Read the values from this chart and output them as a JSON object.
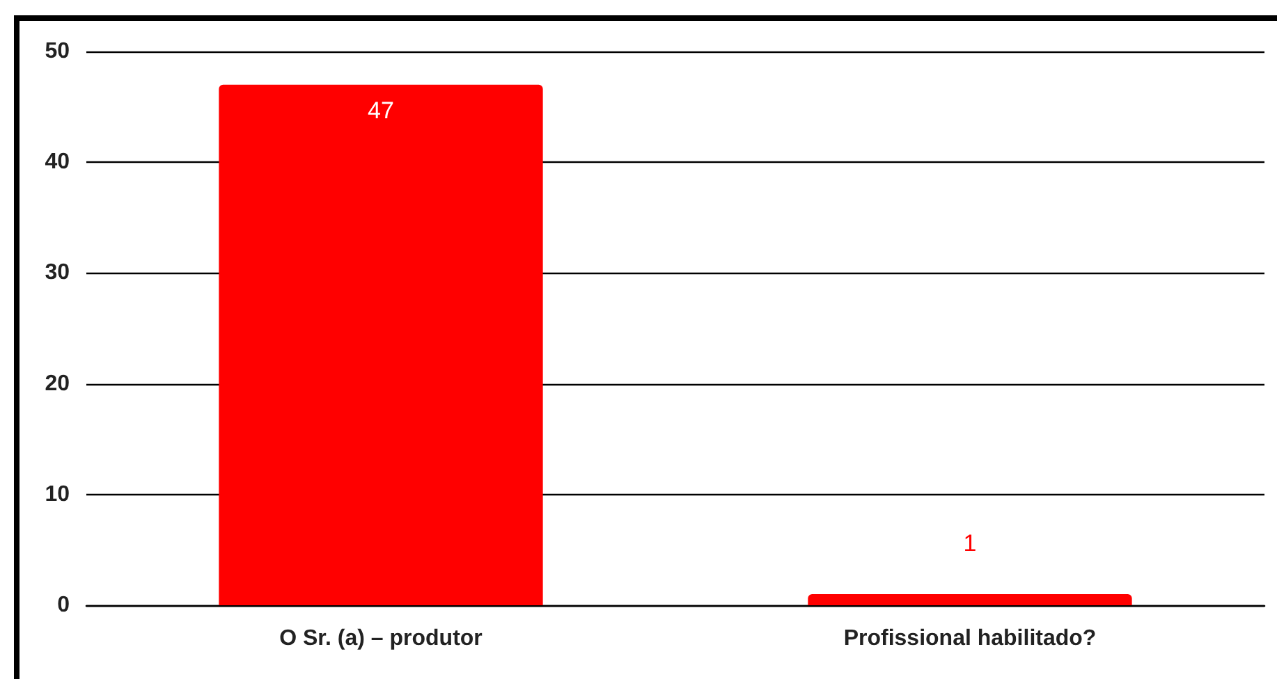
{
  "chart_data": {
    "type": "bar",
    "categories": [
      "O Sr. (a) – produtor",
      "Profissional habilitado?"
    ],
    "values": [
      47,
      1
    ],
    "color": "#ff0000",
    "ylim": [
      0,
      50
    ],
    "yticks": [
      0,
      10,
      20,
      30,
      40,
      50
    ],
    "grid": true,
    "data_labels": true
  }
}
